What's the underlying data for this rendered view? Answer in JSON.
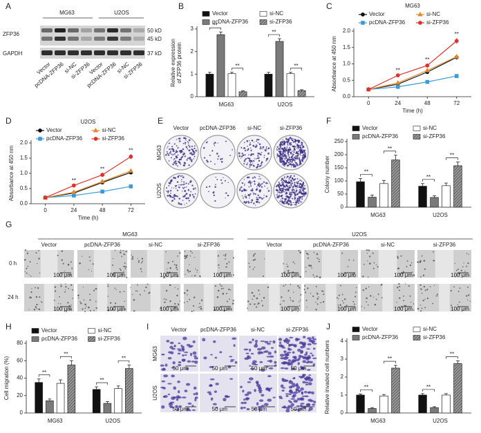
{
  "blot": {
    "label": "A",
    "groups": [
      "MG63",
      "U2OS"
    ],
    "lanes": [
      "Vector",
      "pcDNA-ZFP36",
      "si-NC",
      "si-ZFP36",
      "Vector",
      "pcDNA-ZFP36",
      "si-NC",
      "si-ZFP36"
    ],
    "rows": [
      "ZFP36",
      "GAPDH"
    ],
    "sizes": [
      "50 kD",
      "45 kD",
      "37 kD"
    ]
  },
  "colony": {
    "label": "E",
    "columns": [
      "Vector",
      "pcDNA-ZFP36",
      "si-NC",
      "si-ZFP36"
    ],
    "rows": [
      "MG63",
      "U2OS"
    ]
  },
  "wound": {
    "label": "G",
    "groups": [
      "MG63",
      "U2OS"
    ],
    "columns": [
      "Vector",
      "pcDNA-ZFP36",
      "si-NC",
      "si-ZFP36"
    ],
    "times": [
      "0 h",
      "24 h"
    ],
    "scale": "100 μm"
  },
  "invasion": {
    "label": "I",
    "columns": [
      "Vector",
      "pcDNA-ZFP36",
      "si-NC",
      "si-ZFP36"
    ],
    "rows": [
      "MG63",
      "U2OS"
    ],
    "scale": "50 μm"
  },
  "chart_data": [
    {
      "label": "B",
      "type": "bar",
      "ylabel": [
        "Relative expression",
        "of ZFP36 protein"
      ],
      "categories": [
        "MG63",
        "U2OS"
      ],
      "series": [
        {
          "name": "Vector",
          "color": "#111111",
          "values": [
            1.0,
            1.0
          ],
          "errors": [
            0.08,
            0.08
          ]
        },
        {
          "name": "pcDNA-ZFP36",
          "color": "#7a7a7a",
          "values": [
            2.75,
            2.45
          ],
          "errors": [
            0.12,
            0.12
          ]
        },
        {
          "name": "si-NC",
          "color": "#ffffff",
          "values": [
            1.02,
            1.02
          ],
          "errors": [
            0.06,
            0.06
          ]
        },
        {
          "name": "si-ZFP36",
          "color": "#9a9a9a",
          "pattern": "hatch",
          "values": [
            0.22,
            0.27
          ],
          "errors": [
            0.04,
            0.04
          ]
        }
      ],
      "ylim": [
        0,
        3
      ],
      "yticks": [
        0,
        1,
        2,
        3
      ],
      "significance": "**"
    },
    {
      "label": "C",
      "type": "line",
      "title": "MG63",
      "xlabel": "Time (h)",
      "ylabel": "Absorbance at 450 nm",
      "x": [
        0,
        24,
        48,
        72
      ],
      "series": [
        {
          "name": "Vector",
          "color": "#111111",
          "marker": "circle",
          "values": [
            0.22,
            0.38,
            0.75,
            1.2
          ],
          "errors": [
            0.02,
            0.04,
            0.05,
            0.07
          ]
        },
        {
          "name": "pcDNA-ZFP36",
          "color": "#3a9ad9",
          "marker": "square",
          "values": [
            0.22,
            0.3,
            0.45,
            0.63
          ],
          "errors": [
            0.02,
            0.03,
            0.04,
            0.05
          ]
        },
        {
          "name": "si-NC",
          "color": "#e08a2c",
          "marker": "triangle",
          "values": [
            0.22,
            0.42,
            0.8,
            1.22
          ],
          "errors": [
            0.02,
            0.04,
            0.05,
            0.07
          ]
        },
        {
          "name": "si-ZFP36",
          "color": "#e0302c",
          "marker": "circle",
          "values": [
            0.22,
            0.65,
            0.95,
            1.7
          ],
          "errors": [
            0.02,
            0.04,
            0.06,
            0.09
          ]
        }
      ],
      "xlim": [
        -12,
        84
      ],
      "xticks": [
        0,
        24,
        48,
        72
      ],
      "ylim": [
        0,
        2
      ],
      "yticks": [
        {
          "value": 0,
          "label": "0.0"
        },
        0.5,
        {
          "value": 1,
          "label": "1.0"
        },
        1.5,
        {
          "value": 2,
          "label": "2.0"
        }
      ],
      "significance": "**"
    },
    {
      "label": "D",
      "type": "line",
      "title": "U2OS",
      "xlabel": "Time (h)",
      "ylabel": "Absorbance at 450 nm",
      "x": [
        0,
        24,
        48,
        72
      ],
      "series": [
        {
          "name": "Vector",
          "color": "#111111",
          "marker": "circle",
          "values": [
            0.2,
            0.35,
            0.7,
            1.03
          ],
          "errors": [
            0.02,
            0.04,
            0.05,
            0.06
          ]
        },
        {
          "name": "pcDNA-ZFP36",
          "color": "#3a9ad9",
          "marker": "square",
          "values": [
            0.2,
            0.27,
            0.4,
            0.57
          ],
          "errors": [
            0.02,
            0.03,
            0.04,
            0.05
          ]
        },
        {
          "name": "si-NC",
          "color": "#e08a2c",
          "marker": "triangle",
          "values": [
            0.2,
            0.38,
            0.73,
            1.08
          ],
          "errors": [
            0.02,
            0.04,
            0.05,
            0.06
          ]
        },
        {
          "name": "si-ZFP36",
          "color": "#e0302c",
          "marker": "circle",
          "values": [
            0.2,
            0.6,
            0.95,
            1.55
          ],
          "errors": [
            0.02,
            0.04,
            0.06,
            0.08
          ]
        }
      ],
      "xlim": [
        -12,
        84
      ],
      "xticks": [
        0,
        24,
        48,
        72
      ],
      "ylim": [
        0,
        2
      ],
      "yticks": [
        {
          "value": 0,
          "label": "0.0"
        },
        0.5,
        {
          "value": 1,
          "label": "1.0"
        },
        1.5,
        {
          "value": 2,
          "label": "2.0"
        }
      ],
      "significance": "**"
    },
    {
      "label": "F",
      "type": "bar",
      "ylabel": "Colony number",
      "categories": [
        "MG63",
        "U2OS"
      ],
      "series": [
        {
          "name": "Vector",
          "color": "#111111",
          "values": [
            97,
            80
          ],
          "errors": [
            12,
            10
          ]
        },
        {
          "name": "pcDNA-ZFP36",
          "color": "#7a7a7a",
          "values": [
            38,
            37
          ],
          "errors": [
            8,
            7
          ]
        },
        {
          "name": "si-NC",
          "color": "#ffffff",
          "values": [
            90,
            82
          ],
          "errors": [
            12,
            10
          ]
        },
        {
          "name": "si-ZFP36",
          "color": "#9a9a9a",
          "pattern": "hatch",
          "values": [
            180,
            158
          ],
          "errors": [
            18,
            14
          ]
        }
      ],
      "ylim": [
        0,
        250
      ],
      "yticks": [
        0,
        50,
        100,
        150,
        200,
        250
      ],
      "significance": "**"
    },
    {
      "label": "H",
      "type": "bar",
      "ylabel": "Cell migration (%)",
      "categories": [
        "MG63",
        "U2OS"
      ],
      "series": [
        {
          "name": "Vector",
          "color": "#111111",
          "values": [
            35,
            27
          ],
          "errors": [
            4,
            3
          ]
        },
        {
          "name": "pcDNA-ZFP36",
          "color": "#7a7a7a",
          "values": [
            14,
            11
          ],
          "errors": [
            2,
            2
          ]
        },
        {
          "name": "si-NC",
          "color": "#ffffff",
          "values": [
            34,
            28
          ],
          "errors": [
            4,
            3
          ]
        },
        {
          "name": "si-ZFP36",
          "color": "#9a9a9a",
          "pattern": "hatch",
          "values": [
            55,
            51
          ],
          "errors": [
            5,
            4
          ]
        }
      ],
      "ylim": [
        0,
        80
      ],
      "yticks": [
        0,
        20,
        40,
        60,
        80
      ],
      "significance": "**"
    },
    {
      "label": "J",
      "type": "bar",
      "ylabel": "Relative invaded cell numbers",
      "categories": [
        "MG63",
        "U2OS"
      ],
      "series": [
        {
          "name": "Vector",
          "color": "#111111",
          "values": [
            1.0,
            1.0
          ],
          "errors": [
            0.06,
            0.08
          ]
        },
        {
          "name": "pcDNA-ZFP36",
          "color": "#7a7a7a",
          "values": [
            0.25,
            0.3
          ],
          "errors": [
            0.05,
            0.05
          ]
        },
        {
          "name": "si-NC",
          "color": "#ffffff",
          "values": [
            0.95,
            1.0
          ],
          "errors": [
            0.08,
            0.08
          ]
        },
        {
          "name": "si-ZFP36",
          "color": "#9a9a9a",
          "pattern": "hatch",
          "values": [
            2.5,
            2.75
          ],
          "errors": [
            0.15,
            0.15
          ]
        }
      ],
      "ylim": [
        0,
        4
      ],
      "yticks": [
        0,
        1,
        2,
        3,
        4
      ],
      "significance": "**"
    }
  ]
}
